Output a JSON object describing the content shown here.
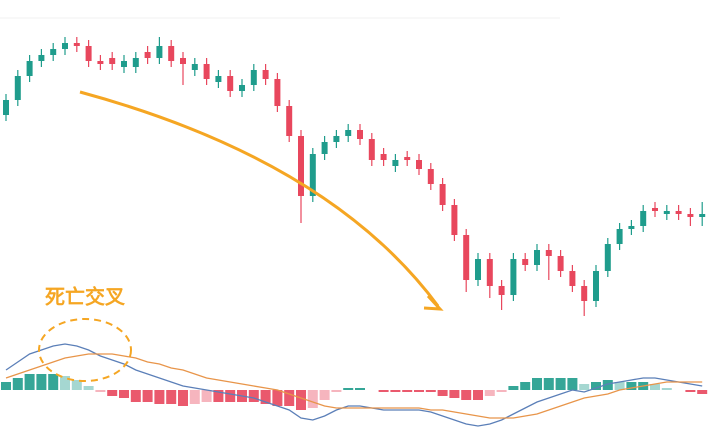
{
  "chart_data": [
    {
      "type": "candlestick",
      "ylim": [
        0,
        110
      ],
      "up_color": "#1f9c8c",
      "down_color": "#e8475d",
      "open": [
        75,
        80,
        88,
        93,
        95,
        97,
        99,
        98,
        93,
        94,
        91,
        91,
        96,
        94,
        98,
        94,
        90,
        92,
        86,
        88,
        83,
        85,
        90,
        87,
        78,
        68,
        48,
        62,
        66,
        68,
        70,
        67,
        62,
        58,
        61,
        60,
        57,
        52,
        45,
        35,
        20,
        27,
        18,
        15,
        27,
        25,
        30,
        28,
        23,
        18,
        13,
        23,
        32,
        37,
        38,
        44,
        42,
        43,
        42,
        41
      ],
      "high": [
        82,
        90,
        95,
        97,
        99,
        101,
        101,
        100,
        95,
        96,
        95,
        96,
        98,
        101,
        100,
        96,
        94,
        94,
        90,
        90,
        87,
        92,
        92,
        89,
        80,
        70,
        64,
        68,
        70,
        72,
        72,
        69,
        64,
        62,
        63,
        62,
        59,
        54,
        47,
        37,
        29,
        29,
        20,
        29,
        29,
        32,
        32,
        30,
        25,
        20,
        25,
        34,
        39,
        40,
        45,
        46,
        45,
        45,
        44,
        46
      ],
      "low": [
        73,
        78,
        86,
        91,
        93,
        95,
        96,
        91,
        90,
        90,
        89,
        89,
        92,
        92,
        91,
        85,
        88,
        85,
        84,
        81,
        81,
        83,
        85,
        76,
        66,
        39,
        46,
        60,
        64,
        66,
        65,
        58,
        58,
        56,
        58,
        55,
        50,
        43,
        33,
        16,
        18,
        14,
        10,
        13,
        23,
        23,
        20,
        21,
        16,
        8,
        11,
        21,
        30,
        35,
        36,
        41,
        40,
        40,
        38,
        38
      ],
      "close": [
        80,
        88,
        93,
        95,
        97,
        99,
        98,
        93,
        92,
        92,
        93,
        94,
        94,
        98,
        93,
        92,
        92,
        87,
        88,
        83,
        85,
        90,
        87,
        78,
        68,
        48,
        62,
        66,
        68,
        70,
        67,
        60,
        60,
        60,
        60,
        57,
        52,
        45,
        35,
        20,
        27,
        18,
        15,
        27,
        25,
        30,
        28,
        23,
        18,
        13,
        23,
        32,
        37,
        38,
        43,
        43,
        43,
        42,
        41,
        42
      ]
    },
    {
      "type": "macd",
      "annotation": "死亡交叉",
      "ylim": [
        -21,
        30
      ],
      "pos_color": "#1f9c8c",
      "neg_color": "#e8475d",
      "histogram": [
        4,
        6,
        8,
        8,
        8,
        7,
        5,
        2,
        -1,
        -3,
        -4,
        -6,
        -6,
        -7,
        -7,
        -8,
        -7,
        -6,
        -6,
        -6,
        -6,
        -6,
        -7,
        -8,
        -8,
        -10,
        -9,
        -5,
        -1,
        1,
        1,
        0,
        -1,
        -1,
        -1,
        -1,
        -1,
        -3,
        -4,
        -5,
        -5,
        -3,
        -1,
        2,
        4,
        6,
        6,
        6,
        6,
        3,
        4,
        5,
        4,
        4,
        4,
        3,
        1,
        0,
        -1,
        -2
      ],
      "series": [
        {
          "color": "#5b7fb8",
          "values": [
            10,
            14,
            18,
            20,
            22,
            23,
            22,
            20,
            17,
            15,
            13,
            10,
            8,
            6,
            4,
            2,
            1,
            0,
            -1,
            -2,
            -3,
            -4,
            -6,
            -8,
            -10,
            -14,
            -15,
            -13,
            -10,
            -8,
            -8,
            -9,
            -10,
            -10,
            -10,
            -10,
            -11,
            -13,
            -15,
            -17,
            -18,
            -17,
            -15,
            -12,
            -9,
            -6,
            -4,
            -2,
            0,
            -1,
            1,
            3,
            4,
            5,
            6,
            6,
            5,
            4,
            3,
            2
          ]
        },
        {
          "color": "#e8954a",
          "values": [
            6,
            8,
            10,
            12,
            14,
            16,
            17,
            18,
            18,
            18,
            17,
            16,
            14,
            13,
            11,
            10,
            8,
            6,
            5,
            4,
            3,
            2,
            1,
            0,
            -2,
            -4,
            -6,
            -8,
            -9,
            -9,
            -9,
            -9,
            -9,
            -9,
            -9,
            -9,
            -10,
            -10,
            -11,
            -12,
            -13,
            -14,
            -14,
            -14,
            -13,
            -12,
            -10,
            -8,
            -6,
            -4,
            -3,
            -2,
            0,
            1,
            2,
            3,
            4,
            4,
            4,
            4
          ]
        }
      ]
    }
  ]
}
